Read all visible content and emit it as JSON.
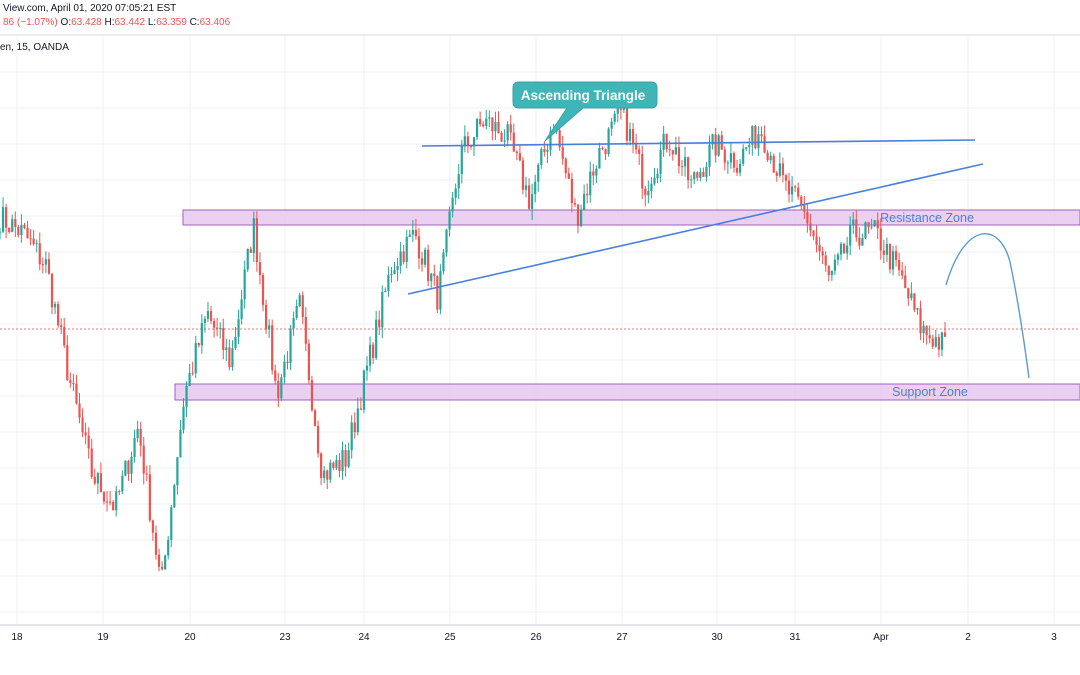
{
  "header": {
    "source_line": "View.com, April 01, 2020 07:05:21 EST",
    "ohlc_change": "86 (−1.07%)",
    "o_label": "O:",
    "o_value": "63.428",
    "h_label": "H:",
    "h_value": "63.442",
    "l_label": "L:",
    "l_value": "63.359",
    "c_label": "C:",
    "c_value": "63.406",
    "symbol_line": "en, 15, OANDA"
  },
  "colors": {
    "up": "#26a69a",
    "down": "#ef5350",
    "trendline": "#4a7fd9",
    "zone_fill": "#e6c8ee",
    "zone_stroke": "#a35fc0",
    "callout": "#3fb5b8",
    "grid": "#eef0f3",
    "price_line": "#ef5350"
  },
  "chart_data": {
    "type": "candlestick",
    "x_tick_labels": [
      "18",
      "19",
      "20",
      "23",
      "24",
      "25",
      "26",
      "27",
      "30",
      "31",
      "Apr",
      "2",
      "3"
    ],
    "y_range_approx": [
      61.6,
      65.2
    ],
    "grid": true,
    "last_price_line": 63.406,
    "series": [
      {
        "segment_prices_approx": [
          64.1,
          64.0,
          63.8,
          63.1,
          62.5,
          62.3,
          62.8,
          61.8,
          63.0,
          63.5,
          63.2,
          64.05,
          63.0,
          63.55,
          62.5,
          62.6,
          63.2,
          63.8,
          64.0,
          63.6,
          64.5,
          64.7,
          64.6,
          64.2,
          64.7,
          64.1,
          64.5,
          64.75,
          64.3,
          64.6,
          64.3,
          64.55,
          64.45,
          64.65,
          64.3,
          64.1,
          63.7,
          64.0,
          64.0,
          63.75,
          63.4,
          63.3
        ]
      }
    ],
    "annotations": [
      {
        "type": "callout",
        "text": "Ascending Triangle"
      },
      {
        "type": "zone",
        "text": "Resistance Zone"
      },
      {
        "type": "zone",
        "text": "Support Zone"
      }
    ]
  }
}
